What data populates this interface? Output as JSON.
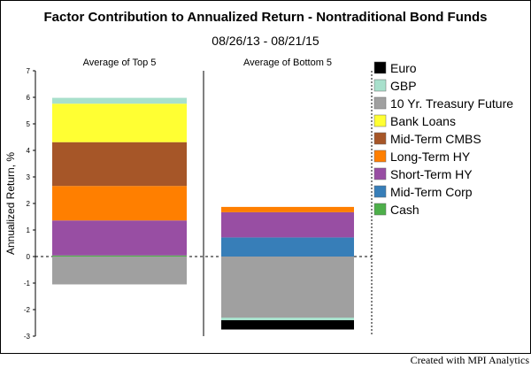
{
  "chart_data": {
    "type": "bar",
    "stacked": true,
    "title": "Factor Contribution to Annualized Return - Nontraditional Bond Funds",
    "subtitle": "08/26/13 - 08/21/15",
    "ylabel": "Annualized Return, %",
    "ylim": [
      -3,
      7
    ],
    "yticks": [
      "-3",
      "-2",
      "-1",
      "0",
      "1",
      "2",
      "3",
      "4",
      "5",
      "6",
      "7"
    ],
    "grid": false,
    "legend_position": "right",
    "categories": [
      "Average of Top 5",
      "Average of Bottom 5"
    ],
    "series": [
      {
        "name": "Euro",
        "color": "#000000",
        "values": [
          0.0,
          -0.35
        ]
      },
      {
        "name": "GBP",
        "color": "#a8e0cc",
        "values": [
          0.22,
          -0.1
        ]
      },
      {
        "name": "10 Yr. Treasury Future",
        "color": "#a0a0a0",
        "values": [
          -1.05,
          -2.3
        ]
      },
      {
        "name": "Bank Loans",
        "color": "#ffff33",
        "values": [
          1.45,
          0.0
        ]
      },
      {
        "name": "Mid-Term CMBS",
        "color": "#a65628",
        "values": [
          1.65,
          0.0
        ]
      },
      {
        "name": "Long-Term HY",
        "color": "#ff7f00",
        "values": [
          1.3,
          0.2
        ]
      },
      {
        "name": "Short-Term HY",
        "color": "#984ea3",
        "values": [
          1.32,
          0.95
        ]
      },
      {
        "name": "Mid-Term Corp",
        "color": "#377eb8",
        "values": [
          0.0,
          0.72
        ]
      },
      {
        "name": "Cash",
        "color": "#4daf4a",
        "values": [
          0.04,
          0.0
        ]
      }
    ]
  },
  "footer": {
    "credit": "Created with MPI Analytics"
  }
}
